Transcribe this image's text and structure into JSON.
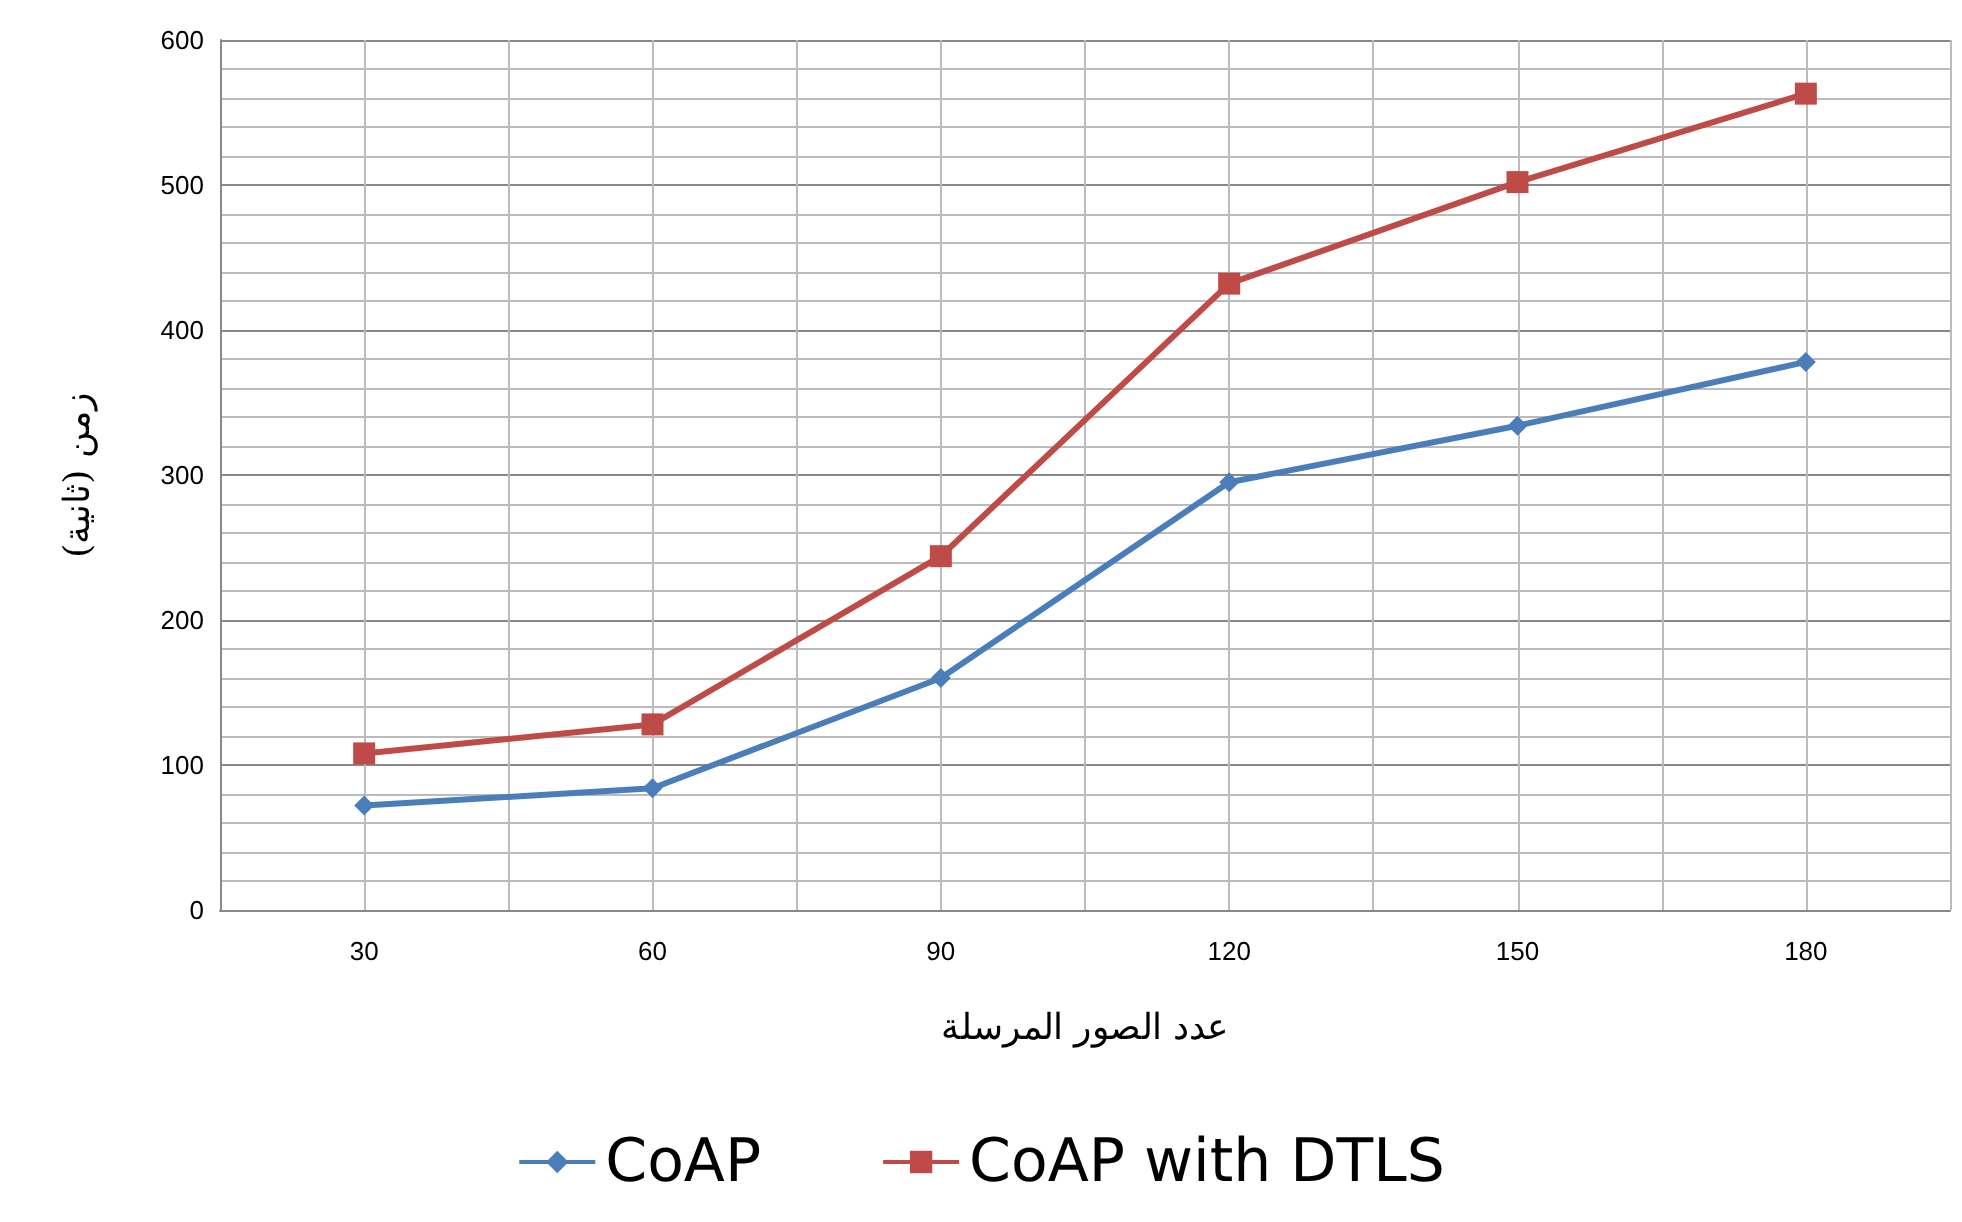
{
  "chart_data": {
    "type": "line",
    "xlabel": "عدد الصور المرسلة",
    "ylabel": "زمن (ثانية)",
    "categories": [
      "30",
      "60",
      "90",
      "120",
      "150",
      "180"
    ],
    "series": [
      {
        "name": "CoAP",
        "color": "#4a7ebb",
        "marker": "diamond",
        "values": [
          72,
          84,
          160,
          295,
          334,
          378
        ]
      },
      {
        "name": "CoAP with DTLS",
        "color": "#be4b48",
        "marker": "square",
        "values": [
          108,
          128,
          244,
          432,
          502,
          563
        ]
      }
    ],
    "ylim": [
      0,
      600
    ],
    "yticks": [
      0,
      100,
      200,
      300,
      400,
      500,
      600
    ],
    "grid": true,
    "legend": "bottom",
    "line_style": "solid"
  }
}
